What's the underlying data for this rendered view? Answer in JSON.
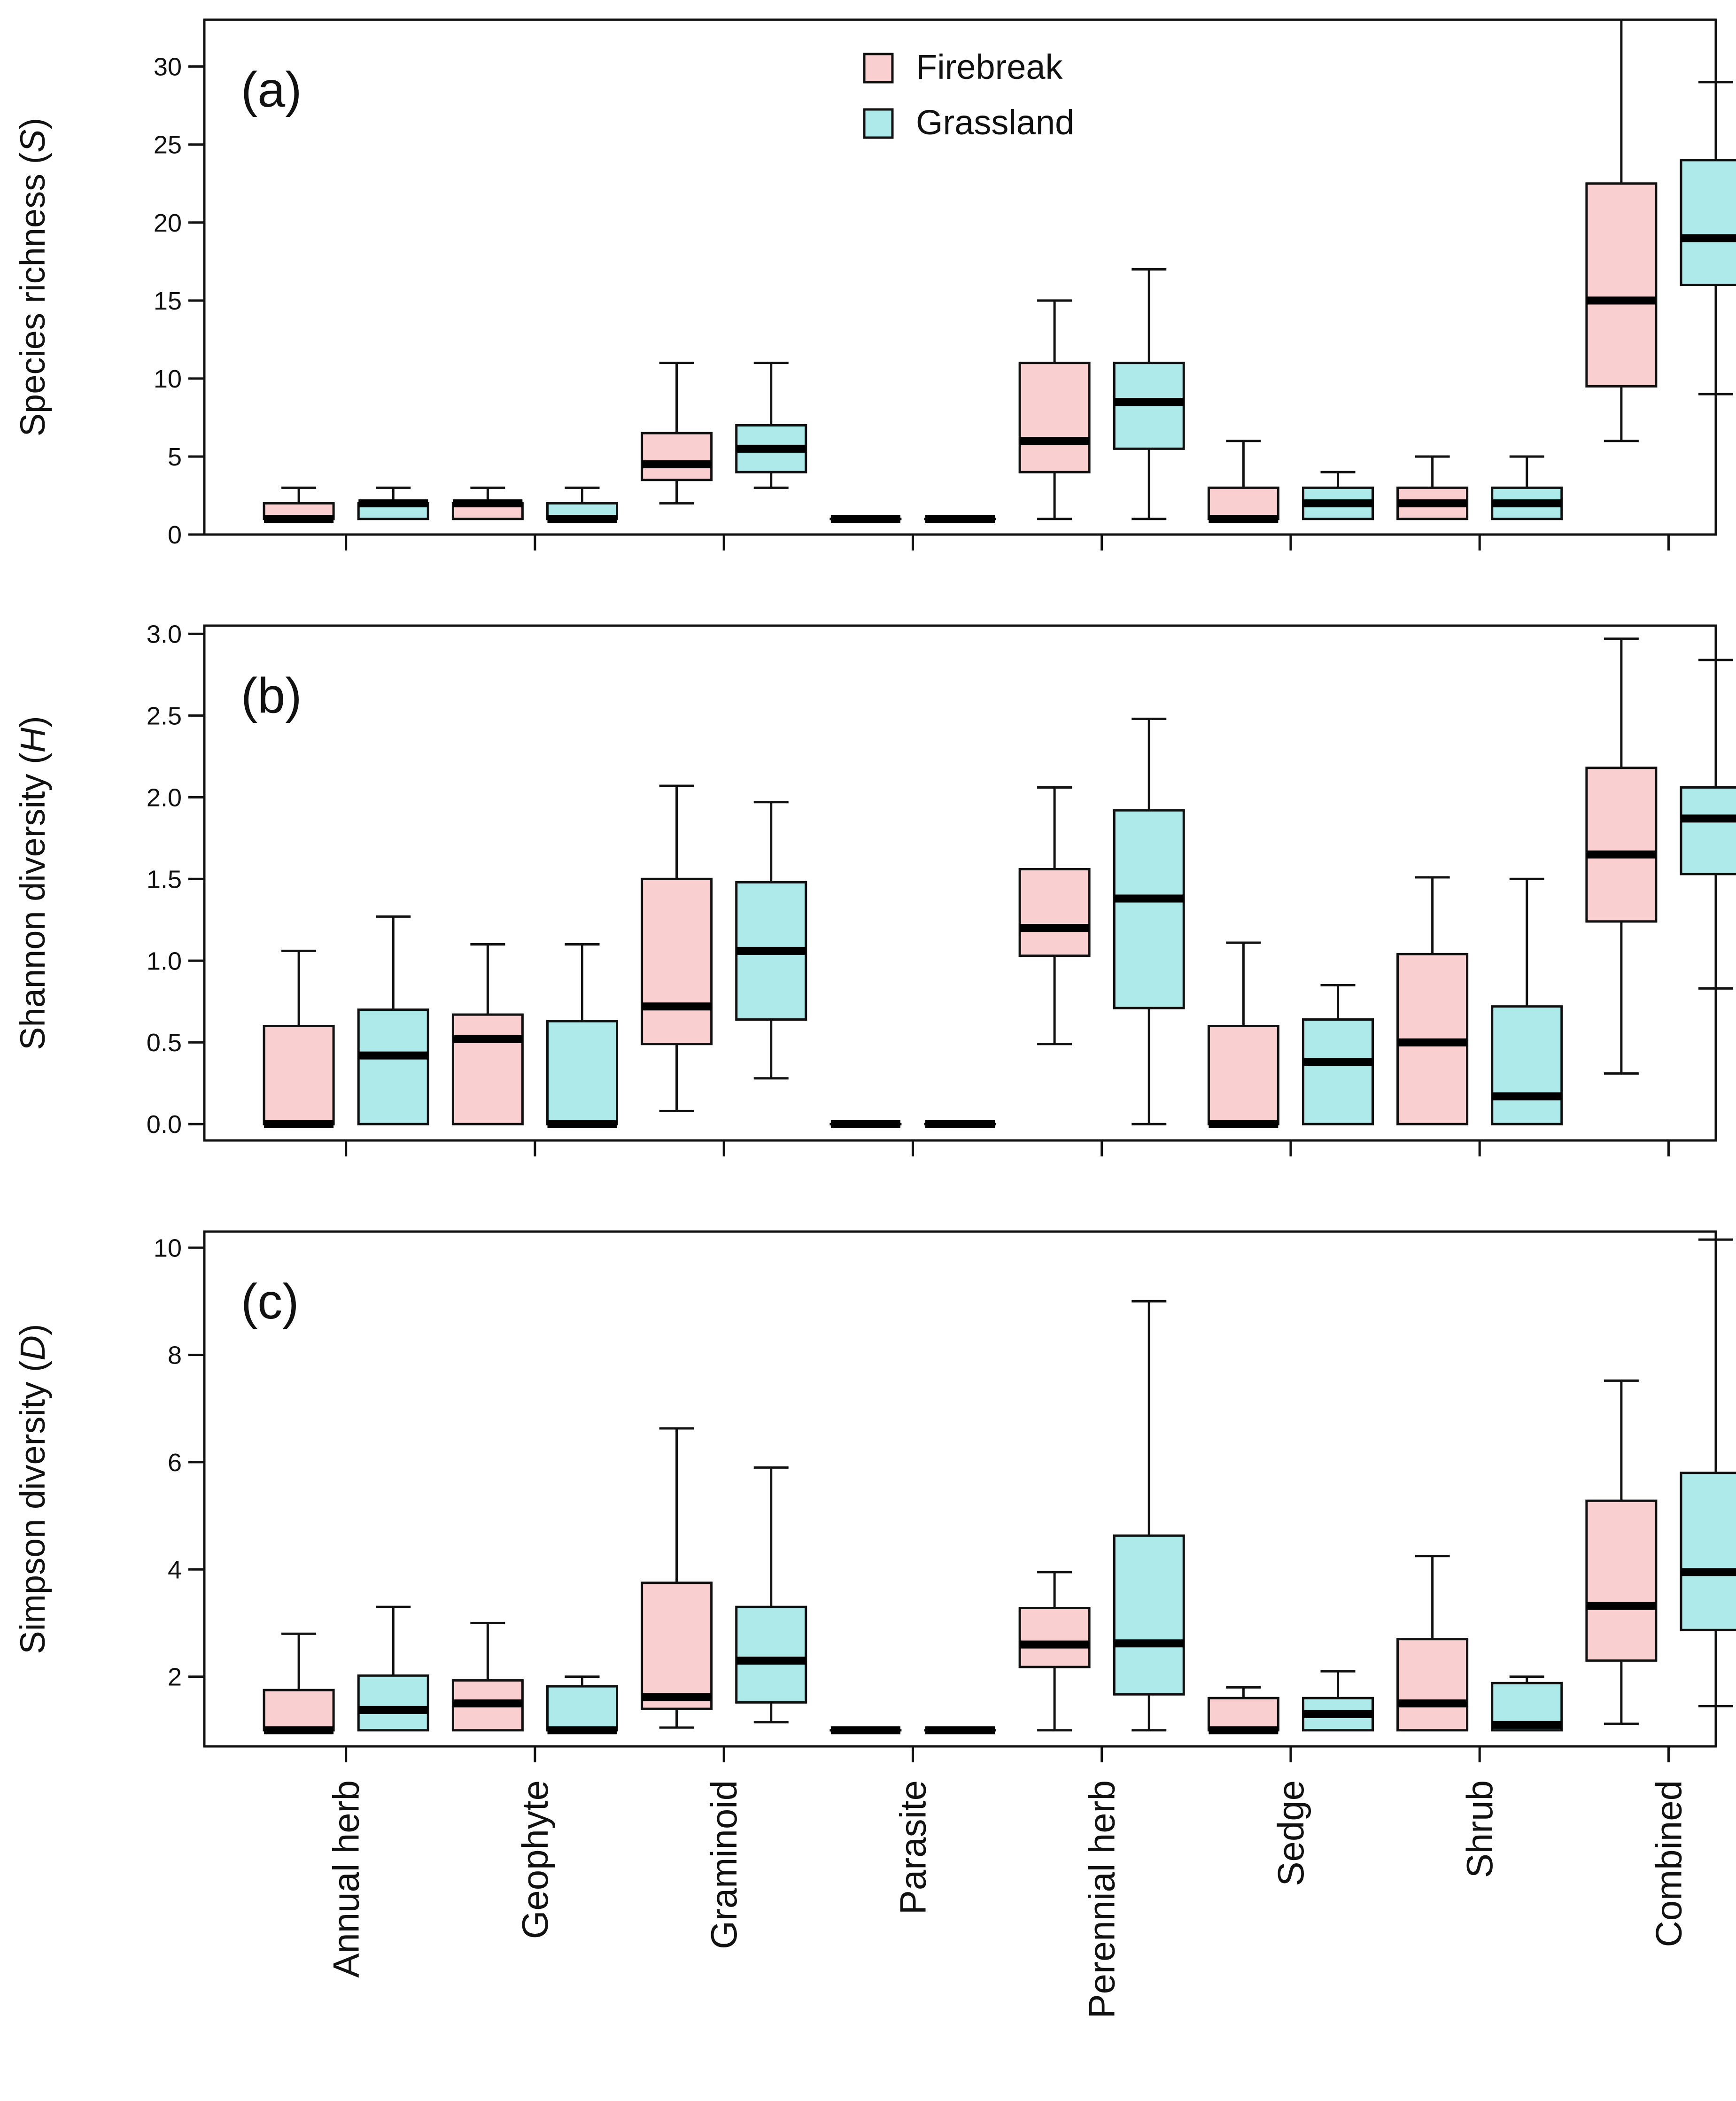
{
  "chart_data": [
    {
      "panel_label": "(a)",
      "type": "boxplot",
      "ylabel_prefix": "Species richness (",
      "ylabel_var": "S",
      "ylabel_suffix": ")",
      "ylim": [
        0,
        33
      ],
      "yticks": [
        0,
        5,
        10,
        15,
        20,
        25,
        30
      ],
      "ytick_labels": [
        "0",
        "5",
        "10",
        "15",
        "20",
        "25",
        "30"
      ],
      "categories": [
        "Annual herb",
        "Geophyte",
        "Graminoid",
        "Parasite",
        "Perennial herb",
        "Sedge",
        "Shrub",
        "Combined"
      ],
      "series": [
        {
          "name": "Firebreak",
          "boxes": [
            {
              "min": 1,
              "q1": 1,
              "median": 1,
              "q3": 2,
              "max": 3
            },
            {
              "min": 1,
              "q1": 1,
              "median": 2,
              "q3": 2,
              "max": 3
            },
            {
              "min": 2,
              "q1": 3.5,
              "median": 4.5,
              "q3": 6.5,
              "max": 11
            },
            {
              "min": 1,
              "q1": 1,
              "median": 1,
              "q3": 1,
              "max": 1
            },
            {
              "min": 1,
              "q1": 4,
              "median": 6,
              "q3": 11,
              "max": 15
            },
            {
              "min": 1,
              "q1": 1,
              "median": 1,
              "q3": 3,
              "max": 6
            },
            {
              "min": 1,
              "q1": 1,
              "median": 2,
              "q3": 3,
              "max": 5
            },
            {
              "min": 6,
              "q1": 9.5,
              "median": 15,
              "q3": 22.5,
              "max": 33
            }
          ]
        },
        {
          "name": "Grassland",
          "boxes": [
            {
              "min": 1,
              "q1": 1,
              "median": 2,
              "q3": 2,
              "max": 3
            },
            {
              "min": 1,
              "q1": 1,
              "median": 1,
              "q3": 2,
              "max": 3
            },
            {
              "min": 3,
              "q1": 4,
              "median": 5.5,
              "q3": 7,
              "max": 11
            },
            {
              "min": 1,
              "q1": 1,
              "median": 1,
              "q3": 1,
              "max": 1
            },
            {
              "min": 1,
              "q1": 5.5,
              "median": 8.5,
              "q3": 11,
              "max": 17
            },
            {
              "min": 1,
              "q1": 1,
              "median": 2,
              "q3": 3,
              "max": 4
            },
            {
              "min": 1,
              "q1": 1,
              "median": 2,
              "q3": 3,
              "max": 5
            },
            {
              "min": 9,
              "q1": 16,
              "median": 19,
              "q3": 24,
              "max": 29
            }
          ]
        }
      ]
    },
    {
      "panel_label": "(b)",
      "type": "boxplot",
      "ylabel_prefix": "Shannon diversity (",
      "ylabel_var": "H",
      "ylabel_suffix": ")",
      "ylim": [
        -0.1,
        3.05
      ],
      "yticks": [
        0,
        0.5,
        1,
        1.5,
        2,
        2.5,
        3
      ],
      "ytick_labels": [
        "0.0",
        "0.5",
        "1.0",
        "1.5",
        "2.0",
        "2.5",
        "3.0"
      ],
      "categories": [
        "Annual herb",
        "Geophyte",
        "Graminoid",
        "Parasite",
        "Perennial herb",
        "Sedge",
        "Shrub",
        "Combined"
      ],
      "series": [
        {
          "name": "Firebreak",
          "boxes": [
            {
              "min": 0,
              "q1": 0,
              "median": 0,
              "q3": 0.6,
              "max": 1.06
            },
            {
              "min": 0,
              "q1": 0,
              "median": 0.52,
              "q3": 0.67,
              "max": 1.1
            },
            {
              "min": 0.08,
              "q1": 0.49,
              "median": 0.72,
              "q3": 1.5,
              "max": 2.07
            },
            {
              "min": 0,
              "q1": 0,
              "median": 0,
              "q3": 0,
              "max": 0
            },
            {
              "min": 0.49,
              "q1": 1.03,
              "median": 1.2,
              "q3": 1.56,
              "max": 2.06
            },
            {
              "min": 0,
              "q1": 0,
              "median": 0,
              "q3": 0.6,
              "max": 1.11
            },
            {
              "min": 0,
              "q1": 0,
              "median": 0.5,
              "q3": 1.04,
              "max": 1.51
            },
            {
              "min": 0.31,
              "q1": 1.24,
              "median": 1.65,
              "q3": 2.18,
              "max": 2.97
            }
          ]
        },
        {
          "name": "Grassland",
          "boxes": [
            {
              "min": 0,
              "q1": 0,
              "median": 0.42,
              "q3": 0.7,
              "max": 1.27
            },
            {
              "min": 0,
              "q1": 0,
              "median": 0,
              "q3": 0.63,
              "max": 1.1
            },
            {
              "min": 0.28,
              "q1": 0.64,
              "median": 1.06,
              "q3": 1.48,
              "max": 1.97
            },
            {
              "min": 0,
              "q1": 0,
              "median": 0,
              "q3": 0,
              "max": 0
            },
            {
              "min": 0,
              "q1": 0.71,
              "median": 1.38,
              "q3": 1.92,
              "max": 2.48
            },
            {
              "min": 0,
              "q1": 0,
              "median": 0.38,
              "q3": 0.64,
              "max": 0.85
            },
            {
              "min": 0,
              "q1": 0,
              "median": 0.17,
              "q3": 0.72,
              "max": 1.5
            },
            {
              "min": 0.83,
              "q1": 1.53,
              "median": 1.87,
              "q3": 2.06,
              "max": 2.84
            }
          ]
        }
      ]
    },
    {
      "panel_label": "(c)",
      "type": "boxplot",
      "ylabel_prefix": "Simpson diversity (",
      "ylabel_var": "D",
      "ylabel_suffix": ")",
      "ylim": [
        0.7,
        10.3
      ],
      "yticks": [
        2,
        4,
        6,
        8,
        10
      ],
      "ytick_labels": [
        "2",
        "4",
        "6",
        "8",
        "10"
      ],
      "categories": [
        "Annual herb",
        "Geophyte",
        "Graminoid",
        "Parasite",
        "Perennial herb",
        "Sedge",
        "Shrub",
        "Combined"
      ],
      "series": [
        {
          "name": "Firebreak",
          "boxes": [
            {
              "min": 1,
              "q1": 1,
              "median": 1,
              "q3": 1.75,
              "max": 2.8
            },
            {
              "min": 1,
              "q1": 1,
              "median": 1.5,
              "q3": 1.93,
              "max": 3
            },
            {
              "min": 1.05,
              "q1": 1.4,
              "median": 1.62,
              "q3": 3.75,
              "max": 6.63
            },
            {
              "min": 1,
              "q1": 1,
              "median": 1,
              "q3": 1,
              "max": 1
            },
            {
              "min": 1,
              "q1": 2.18,
              "median": 2.6,
              "q3": 3.28,
              "max": 3.95
            },
            {
              "min": 1,
              "q1": 1,
              "median": 1,
              "q3": 1.6,
              "max": 1.8
            },
            {
              "min": 1,
              "q1": 1,
              "median": 1.5,
              "q3": 2.7,
              "max": 4.25
            },
            {
              "min": 1.12,
              "q1": 2.3,
              "median": 3.32,
              "q3": 5.28,
              "max": 7.52
            }
          ]
        },
        {
          "name": "Grassland",
          "boxes": [
            {
              "min": 1,
              "q1": 1,
              "median": 1.38,
              "q3": 2.02,
              "max": 3.3
            },
            {
              "min": 1,
              "q1": 1,
              "median": 1,
              "q3": 1.82,
              "max": 2
            },
            {
              "min": 1.15,
              "q1": 1.52,
              "median": 2.3,
              "q3": 3.3,
              "max": 5.9
            },
            {
              "min": 1,
              "q1": 1,
              "median": 1,
              "q3": 1,
              "max": 1
            },
            {
              "min": 1,
              "q1": 1.67,
              "median": 2.62,
              "q3": 4.63,
              "max": 9
            },
            {
              "min": 1,
              "q1": 1,
              "median": 1.3,
              "q3": 1.6,
              "max": 2.1
            },
            {
              "min": 1,
              "q1": 1,
              "median": 1.1,
              "q3": 1.88,
              "max": 2
            },
            {
              "min": 1.45,
              "q1": 2.87,
              "median": 3.95,
              "q3": 5.8,
              "max": 10.15
            }
          ]
        }
      ]
    }
  ],
  "legend": [
    {
      "name": "Firebreak",
      "color": "#f9d0cf"
    },
    {
      "name": "Grassland",
      "color": "#aeeaea"
    }
  ],
  "colors": {
    "firebreak": "#f9d0cf",
    "grassland": "#aeeaea",
    "line": "#111111"
  }
}
